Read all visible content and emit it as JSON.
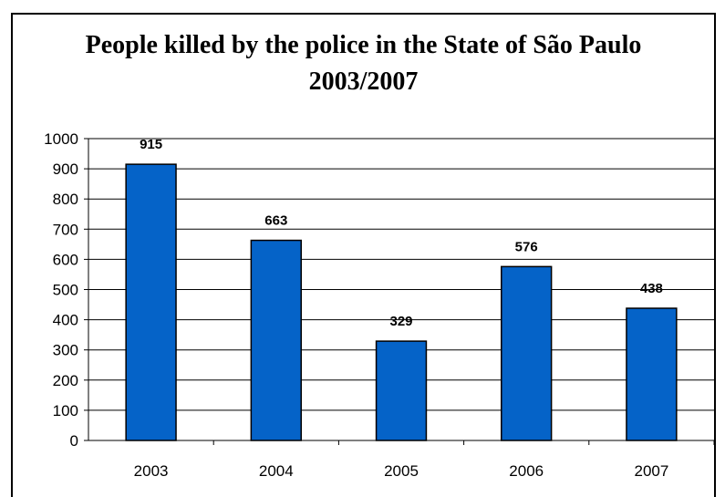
{
  "chart_data": {
    "type": "bar",
    "title_lines": [
      "People killed by the police in the State of São Paulo",
      "2003/2007"
    ],
    "categories": [
      "2003",
      "2004",
      "2005",
      "2006",
      "2007"
    ],
    "values": [
      915,
      663,
      329,
      576,
      438
    ],
    "data_labels": [
      "915",
      "663",
      "329",
      "576",
      "438"
    ],
    "ylim": [
      0,
      1000
    ],
    "yticks": [
      0,
      100,
      200,
      300,
      400,
      500,
      600,
      700,
      800,
      900,
      1000
    ],
    "grid": true,
    "legend": "none",
    "bar_color": "#0563C8",
    "bar_edge_color": "#000000"
  }
}
